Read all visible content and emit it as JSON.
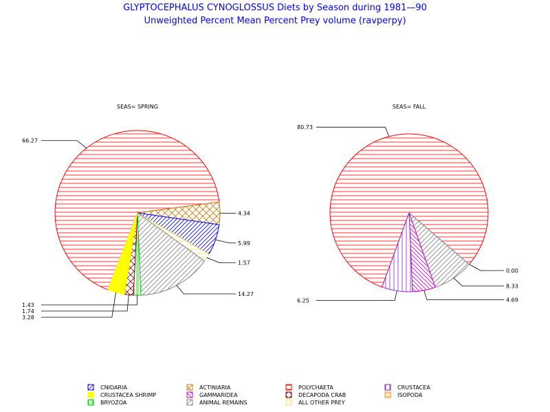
{
  "title": "GLYPTOCEPHALUS CYNOGLOSSUS Diets by Season during 1981—90",
  "subtitle": "Unweighted Percent Mean Percent Prey  volume (ravperpy)",
  "legend": [
    {
      "key": "cnidaria",
      "label": "CNIDARIA"
    },
    {
      "key": "actiniaria",
      "label": "ACTINIARIA"
    },
    {
      "key": "polychaeta",
      "label": "POLYCHAETA"
    },
    {
      "key": "crustacea",
      "label": "CRUSTACEA"
    },
    {
      "key": "shrimp",
      "label": "CRUSTACEA SHRIMP"
    },
    {
      "key": "gammaridea",
      "label": "GAMMARIDEA"
    },
    {
      "key": "crab",
      "label": "DECAPODA CRAB"
    },
    {
      "key": "isopoda",
      "label": "ISOPODA"
    },
    {
      "key": "bryozoa",
      "label": "BRYOZOA"
    },
    {
      "key": "remains",
      "label": "ANIMAL REMAINS"
    },
    {
      "key": "other",
      "label": "ALL OTHER PREY"
    }
  ],
  "categories": {
    "cnidaria": {
      "color": "#0000ff"
    },
    "actiniaria": {
      "color": "#c87800"
    },
    "polychaeta": {
      "color": "#ff0000"
    },
    "crustacea": {
      "color": "#9020c0"
    },
    "shrimp": {
      "color": "#ffff00"
    },
    "gammaridea": {
      "color": "#d000d0"
    },
    "crab": {
      "color": "#800000"
    },
    "isopoda": {
      "color": "#ff8800"
    },
    "bryozoa": {
      "color": "#00cc00"
    },
    "remains": {
      "color": "#808080"
    },
    "other": {
      "color": "#f0e060"
    }
  },
  "chart_data": [
    {
      "type": "pie",
      "title": "SEAS= SPRING",
      "slices": [
        {
          "category": "polychaeta",
          "label": "66.27",
          "value": 66.27
        },
        {
          "category": "actiniaria",
          "label": "4.34",
          "value": 4.34
        },
        {
          "category": "cnidaria",
          "label": "5.99",
          "value": 5.99
        },
        {
          "category": "other",
          "label": "1.57",
          "value": 1.57
        },
        {
          "category": "remains",
          "label": "14.27",
          "value": 14.27
        },
        {
          "category": "bryozoa",
          "label": "1.43",
          "value": 1.43
        },
        {
          "category": "crab",
          "label": "1.74",
          "value": 1.74
        },
        {
          "category": "shrimp",
          "label": "3.28",
          "value": 3.28
        }
      ]
    },
    {
      "type": "pie",
      "title": "SEAS= FALL",
      "slices": [
        {
          "category": "polychaeta",
          "label": "80.73",
          "value": 80.73
        },
        {
          "category": "other",
          "label": "0.00",
          "value": 0.0
        },
        {
          "category": "remains",
          "label": "8.33",
          "value": 8.33
        },
        {
          "category": "gammaridea",
          "label": "4.69",
          "value": 4.69
        },
        {
          "category": "crustacea",
          "label": "6.25",
          "value": 6.25
        }
      ]
    }
  ]
}
